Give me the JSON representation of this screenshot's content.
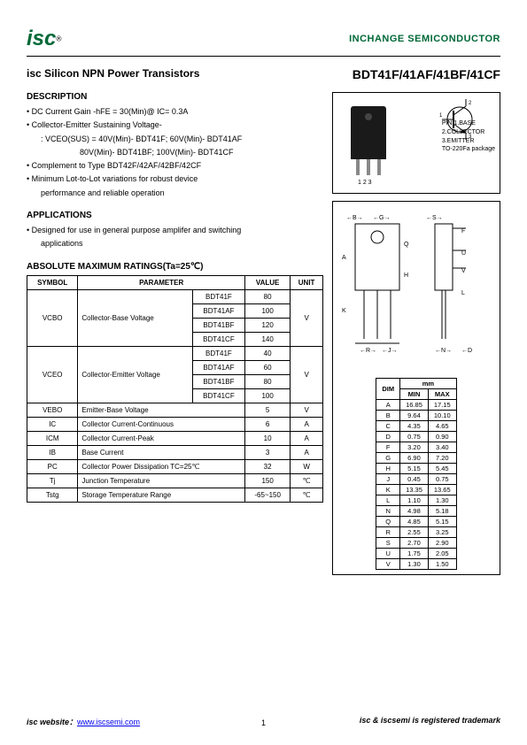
{
  "header": {
    "logo": "isc",
    "reg": "®",
    "company": "INCHANGE SEMICONDUCTOR"
  },
  "title": {
    "product": "isc Silicon NPN Power Transistors",
    "part": "BDT41F/41AF/41BF/41CF"
  },
  "sections": {
    "description": "DESCRIPTION",
    "applications": "APPLICATIONS",
    "ratings": "ABSOLUTE MAXIMUM RATINGS(Ta=25℃)"
  },
  "desc": {
    "d1": "• DC Current Gain -hFE = 30(Min)@ IC= 0.3A",
    "d2": "• Collector-Emitter Sustaining Voltage-",
    "d2a": ": VCEO(SUS) = 40V(Min)- BDT41F; 60V(Min)- BDT41AF",
    "d2b": "80V(Min)- BDT41BF; 100V(Min)- BDT41CF",
    "d3": "• Complement to Type BDT42F/42AF/42BF/42CF",
    "d4": "• Minimum Lot-to-Lot variations for robust device",
    "d4a": "performance and reliable operation"
  },
  "apps": {
    "a1": "• Designed for use in general purpose amplifer and switching",
    "a1a": "applications"
  },
  "ratings_table": {
    "headers": {
      "symbol": "SYMBOL",
      "parameter": "PARAMETER",
      "value": "VALUE",
      "unit": "UNIT"
    },
    "vcbo": {
      "sym": "VCBO",
      "param": "Collector-Base Voltage",
      "variants": [
        {
          "p": "BDT41F",
          "v": "80"
        },
        {
          "p": "BDT41AF",
          "v": "100"
        },
        {
          "p": "BDT41BF",
          "v": "120"
        },
        {
          "p": "BDT41CF",
          "v": "140"
        }
      ],
      "unit": "V"
    },
    "vceo": {
      "sym": "VCEO",
      "param": "Collector-Emitter Voltage",
      "variants": [
        {
          "p": "BDT41F",
          "v": "40"
        },
        {
          "p": "BDT41AF",
          "v": "60"
        },
        {
          "p": "BDT41BF",
          "v": "80"
        },
        {
          "p": "BDT41CF",
          "v": "100"
        }
      ],
      "unit": "V"
    },
    "rows": [
      {
        "sym": "VEBO",
        "param": "Emitter-Base Voltage",
        "val": "5",
        "unit": "V"
      },
      {
        "sym": "IC",
        "param": "Collector Current-Continuous",
        "val": "6",
        "unit": "A"
      },
      {
        "sym": "ICM",
        "param": "Collector Current-Peak",
        "val": "10",
        "unit": "A"
      },
      {
        "sym": "IB",
        "param": "Base Current",
        "val": "3",
        "unit": "A"
      },
      {
        "sym": "PC",
        "param": "Collector Power Dissipation TC=25℃",
        "val": "32",
        "unit": "W"
      },
      {
        "sym": "Tj",
        "param": "Junction Temperature",
        "val": "150",
        "unit": "℃"
      },
      {
        "sym": "Tstg",
        "param": "Storage Temperature Range",
        "val": "-65~150",
        "unit": "℃"
      }
    ]
  },
  "pkg": {
    "pin_nums": "1 2 3",
    "pins": [
      "PIN 1.BASE",
      "2.COLLECTOR",
      "3.EMITTER",
      "TO-220Fa package"
    ]
  },
  "dims": {
    "header": {
      "dim": "DIM",
      "mm": "mm",
      "min": "MIN",
      "max": "MAX"
    },
    "rows": [
      {
        "d": "A",
        "min": "16.85",
        "max": "17.15"
      },
      {
        "d": "B",
        "min": "9.64",
        "max": "10.10"
      },
      {
        "d": "C",
        "min": "4.35",
        "max": "4.65"
      },
      {
        "d": "D",
        "min": "0.75",
        "max": "0.90"
      },
      {
        "d": "F",
        "min": "3.20",
        "max": "3.40"
      },
      {
        "d": "G",
        "min": "6.90",
        "max": "7.20"
      },
      {
        "d": "H",
        "min": "5.15",
        "max": "5.45"
      },
      {
        "d": "J",
        "min": "0.45",
        "max": "0.75"
      },
      {
        "d": "K",
        "min": "13.35",
        "max": "13.65"
      },
      {
        "d": "L",
        "min": "1.10",
        "max": "1.30"
      },
      {
        "d": "N",
        "min": "4.98",
        "max": "5.18"
      },
      {
        "d": "Q",
        "min": "4.85",
        "max": "5.15"
      },
      {
        "d": "R",
        "min": "2.55",
        "max": "3.25"
      },
      {
        "d": "S",
        "min": "2.70",
        "max": "2.90"
      },
      {
        "d": "U",
        "min": "1.75",
        "max": "2.05"
      },
      {
        "d": "V",
        "min": "1.30",
        "max": "1.50"
      }
    ]
  },
  "footer": {
    "site_label": "isc website：",
    "site_url": "www.iscsemi.com",
    "trademark": "isc & iscsemi is registered trademark",
    "page": "1"
  }
}
